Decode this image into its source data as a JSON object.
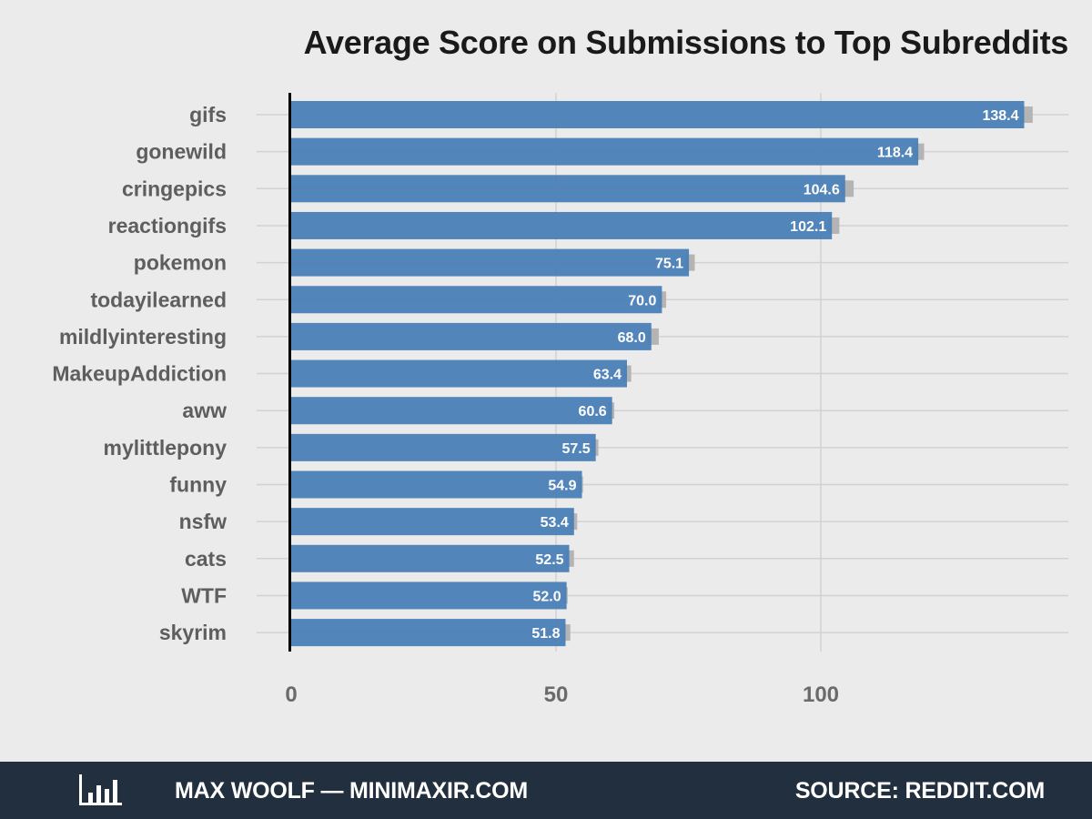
{
  "chart_data": {
    "type": "bar",
    "orientation": "horizontal",
    "title": "Average Score on Submissions to Top Subreddits",
    "categories": [
      "gifs",
      "gonewild",
      "cringepics",
      "reactiongifs",
      "pokemon",
      "todayilearned",
      "mildlyinteresting",
      "MakeupAddiction",
      "aww",
      "mylittlepony",
      "funny",
      "nsfw",
      "cats",
      "WTF",
      "skyrim"
    ],
    "values": [
      138.4,
      118.4,
      104.6,
      102.1,
      75.1,
      70.0,
      68.0,
      63.4,
      60.6,
      57.5,
      54.9,
      53.4,
      52.5,
      52.0,
      51.8
    ],
    "value_labels": [
      "138.4",
      "118.4",
      "104.6",
      "102.1",
      "75.1",
      "70.0",
      "68.0",
      "63.4",
      "60.6",
      "57.5",
      "54.9",
      "53.4",
      "52.5",
      "52.0",
      "51.8"
    ],
    "error_upper": [
      140.0,
      119.5,
      106.2,
      103.5,
      76.2,
      70.8,
      69.4,
      64.2,
      61.0,
      58.0,
      55.1,
      54.0,
      53.4,
      52.2,
      52.7
    ],
    "x_ticks": [
      "0",
      "50",
      "100"
    ],
    "x_tick_values": [
      0,
      50,
      100
    ],
    "xlim": [
      0,
      146.5
    ],
    "xlabel": "",
    "ylabel": "",
    "grid": true,
    "bar_color": "#4a80b6",
    "error_bar_color": "#b4b4b4"
  },
  "footer": {
    "logo_icon": "bar-chart-logo-icon",
    "author": "MAX WOOLF — MINIMAXIR.COM",
    "source": "SOURCE: REDDIT.COM",
    "background": "#222f3e"
  }
}
